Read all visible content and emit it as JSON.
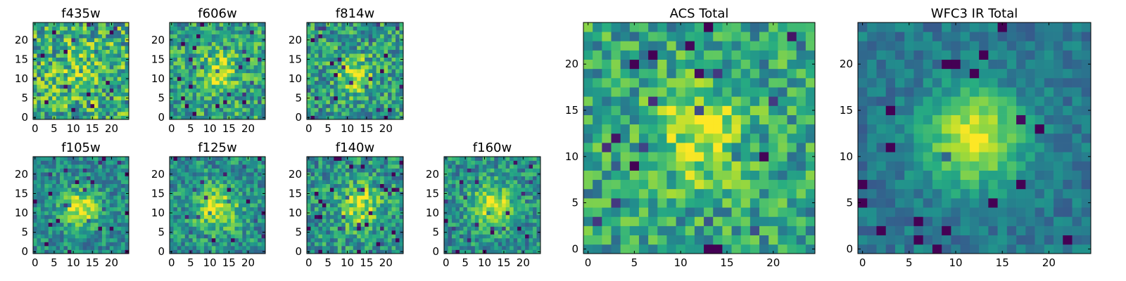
{
  "chart_data": [
    {
      "type": "heatmap",
      "title": "f435w",
      "xlabel": "",
      "ylabel": "",
      "grid": [
        25,
        25
      ],
      "xlim": [
        0,
        24
      ],
      "ylim": [
        0,
        24
      ],
      "x_ticks": [
        "0",
        "5",
        "10",
        "15",
        "20"
      ],
      "y_ticks": [
        "0",
        "5",
        "10",
        "15",
        "20"
      ],
      "colormap": "viridis",
      "center": [
        12,
        12
      ],
      "profile_width": 4.5,
      "peak": 0.12,
      "baseline": 0.62,
      "noise": 0.32,
      "seed": 11
    },
    {
      "type": "heatmap",
      "title": "f606w",
      "xlabel": "",
      "ylabel": "",
      "grid": [
        25,
        25
      ],
      "xlim": [
        0,
        24
      ],
      "ylim": [
        0,
        24
      ],
      "x_ticks": [
        "0",
        "5",
        "10",
        "15",
        "20"
      ],
      "y_ticks": [
        "0",
        "5",
        "10",
        "15",
        "20"
      ],
      "colormap": "viridis",
      "center": [
        12,
        12
      ],
      "profile_width": 3.5,
      "peak": 0.32,
      "baseline": 0.58,
      "noise": 0.26,
      "seed": 23
    },
    {
      "type": "heatmap",
      "title": "f814w",
      "xlabel": "",
      "ylabel": "",
      "grid": [
        25,
        25
      ],
      "xlim": [
        0,
        24
      ],
      "ylim": [
        0,
        24
      ],
      "x_ticks": [
        "0",
        "5",
        "10",
        "15",
        "20"
      ],
      "y_ticks": [
        "0",
        "5",
        "10",
        "15",
        "20"
      ],
      "colormap": "viridis",
      "center": [
        12,
        11
      ],
      "profile_width": 3.2,
      "peak": 0.35,
      "baseline": 0.55,
      "noise": 0.27,
      "seed": 37
    },
    {
      "type": "heatmap",
      "title": "f105w",
      "xlabel": "",
      "ylabel": "",
      "grid": [
        25,
        25
      ],
      "xlim": [
        0,
        24
      ],
      "ylim": [
        0,
        24
      ],
      "x_ticks": [
        "0",
        "5",
        "10",
        "15",
        "20"
      ],
      "y_ticks": [
        "0",
        "5",
        "10",
        "15",
        "20"
      ],
      "colormap": "viridis",
      "center": [
        12,
        11
      ],
      "profile_width": 3.4,
      "peak": 0.48,
      "baseline": 0.48,
      "noise": 0.2,
      "seed": 41
    },
    {
      "type": "heatmap",
      "title": "f125w",
      "xlabel": "",
      "ylabel": "",
      "grid": [
        25,
        25
      ],
      "xlim": [
        0,
        24
      ],
      "ylim": [
        0,
        24
      ],
      "x_ticks": [
        "0",
        "5",
        "10",
        "15",
        "20"
      ],
      "y_ticks": [
        "0",
        "5",
        "10",
        "15",
        "20"
      ],
      "colormap": "viridis",
      "center": [
        12,
        11
      ],
      "profile_width": 4.0,
      "peak": 0.42,
      "baseline": 0.5,
      "noise": 0.22,
      "seed": 53
    },
    {
      "type": "heatmap",
      "title": "f140w",
      "xlabel": "",
      "ylabel": "",
      "grid": [
        25,
        25
      ],
      "xlim": [
        0,
        24
      ],
      "ylim": [
        0,
        24
      ],
      "x_ticks": [
        "0",
        "5",
        "10",
        "15",
        "20"
      ],
      "y_ticks": [
        "0",
        "5",
        "10",
        "15",
        "20"
      ],
      "colormap": "viridis",
      "center": [
        13,
        12
      ],
      "profile_width": 3.8,
      "peak": 0.4,
      "baseline": 0.52,
      "noise": 0.24,
      "seed": 67
    },
    {
      "type": "heatmap",
      "title": "f160w",
      "xlabel": "",
      "ylabel": "",
      "grid": [
        25,
        25
      ],
      "xlim": [
        0,
        24
      ],
      "ylim": [
        0,
        24
      ],
      "x_ticks": [
        "0",
        "5",
        "10",
        "15",
        "20"
      ],
      "y_ticks": [
        "0",
        "5",
        "10",
        "15",
        "20"
      ],
      "colormap": "viridis",
      "center": [
        12,
        12
      ],
      "profile_width": 3.8,
      "peak": 0.44,
      "baseline": 0.5,
      "noise": 0.22,
      "seed": 79
    },
    {
      "type": "heatmap",
      "title": "ACS Total",
      "xlabel": "",
      "ylabel": "",
      "grid": [
        25,
        25
      ],
      "xlim": [
        0,
        24
      ],
      "ylim": [
        0,
        24
      ],
      "x_ticks": [
        "0",
        "5",
        "10",
        "15",
        "20"
      ],
      "y_ticks": [
        "0",
        "5",
        "10",
        "15",
        "20"
      ],
      "colormap": "viridis",
      "center": [
        12,
        12
      ],
      "profile_width": 3.5,
      "peak": 0.36,
      "baseline": 0.58,
      "noise": 0.24,
      "seed": 97
    },
    {
      "type": "heatmap",
      "title": "WFC3 IR Total",
      "xlabel": "",
      "ylabel": "",
      "grid": [
        25,
        25
      ],
      "xlim": [
        0,
        24
      ],
      "ylim": [
        0,
        24
      ],
      "x_ticks": [
        "0",
        "5",
        "10",
        "15",
        "20"
      ],
      "y_ticks": [
        "0",
        "5",
        "10",
        "15",
        "20"
      ],
      "colormap": "viridis",
      "center": [
        12,
        12
      ],
      "profile_width": 3.6,
      "peak": 0.58,
      "baseline": 0.4,
      "noise": 0.12,
      "seed": 113
    }
  ]
}
